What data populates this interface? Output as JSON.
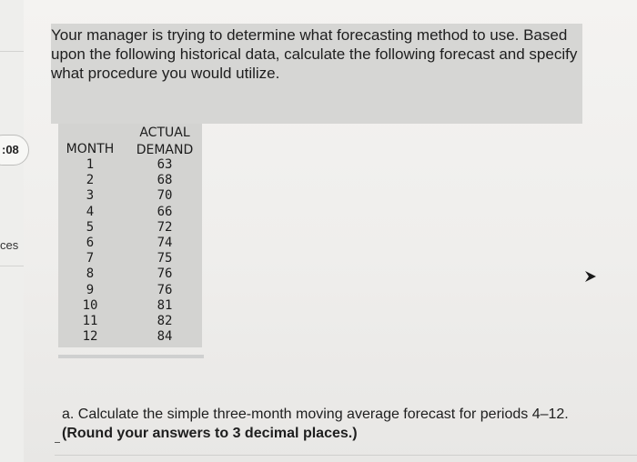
{
  "sidebar": {
    "timer_text": ":08",
    "item_text": "ces"
  },
  "question": {
    "text": "Your manager is trying to determine what forecasting method to use. Based upon the following historical data, calculate the following forecast and specify what procedure you would utilize."
  },
  "table": {
    "month_header": "MONTH",
    "actual_header": "ACTUAL",
    "demand_header": "DEMAND",
    "months": [
      "1",
      "2",
      "3",
      "4",
      "5",
      "6",
      "7",
      "8",
      "9",
      "10",
      "11",
      "12"
    ],
    "demand": [
      "63",
      "68",
      "70",
      "66",
      "72",
      "74",
      "75",
      "76",
      "76",
      "81",
      "82",
      "84"
    ]
  },
  "part_a": {
    "text": "a. Calculate the simple three-month moving average forecast for periods 4–12. ",
    "bold_text": "(Round your answers to 3 decimal places.)"
  },
  "icons": {
    "cursor": "mouse-pointer-icon"
  }
}
